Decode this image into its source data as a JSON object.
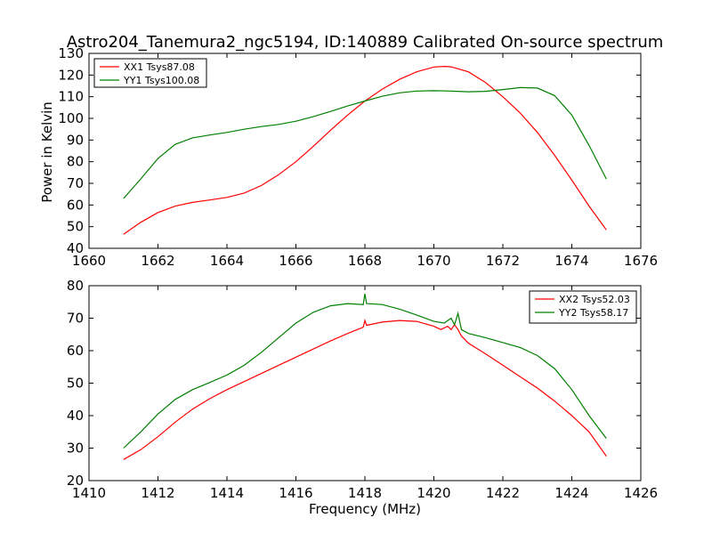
{
  "chart_data": [
    {
      "type": "line",
      "title": "Astro204_Tanemura2_ngc5194, ID:140889 Calibrated On-source spectrum",
      "xlabel": "",
      "ylabel": "Power in Kelvin",
      "xlim": [
        1660,
        1676
      ],
      "ylim": [
        40,
        130
      ],
      "xticks": [
        1660,
        1662,
        1664,
        1666,
        1668,
        1670,
        1672,
        1674,
        1676
      ],
      "yticks": [
        40,
        50,
        60,
        70,
        80,
        90,
        100,
        110,
        120,
        130
      ],
      "grid": false,
      "legend_position": "upper-left",
      "series": [
        {
          "name": "XX1 Tsys87.08",
          "color": "#ff0000",
          "x": [
            1661,
            1661.5,
            1662,
            1662.5,
            1663,
            1663.5,
            1664,
            1664.5,
            1665,
            1665.5,
            1666,
            1666.5,
            1667,
            1667.5,
            1668,
            1668.5,
            1669,
            1669.5,
            1670,
            1670.3,
            1670.5,
            1671,
            1671.5,
            1672,
            1672.5,
            1673,
            1673.5,
            1674,
            1674.5,
            1675
          ],
          "y": [
            46.5,
            52,
            56.5,
            59.5,
            61.2,
            62.3,
            63.5,
            65.5,
            69,
            74,
            80,
            87,
            94.5,
            101.5,
            108,
            113.5,
            118,
            121.5,
            123.7,
            124,
            123.8,
            121.5,
            116.5,
            110,
            102.5,
            93.5,
            83,
            71.5,
            59.5,
            48.5
          ]
        },
        {
          "name": "YY1 Tsys100.08",
          "color": "#008000",
          "x": [
            1661,
            1661.5,
            1662,
            1662.5,
            1663,
            1663.5,
            1664,
            1664.5,
            1665,
            1665.5,
            1666,
            1666.5,
            1667,
            1667.5,
            1668,
            1668.5,
            1669,
            1669.5,
            1670,
            1670.5,
            1671,
            1671.5,
            1672,
            1672.5,
            1673,
            1673.5,
            1674,
            1674.5,
            1675
          ],
          "y": [
            63,
            72,
            81.5,
            88,
            91,
            92.3,
            93.5,
            95,
            96.2,
            97.2,
            98.7,
            100.8,
            103.2,
            105.7,
            108,
            110.2,
            111.8,
            112.6,
            112.8,
            112.6,
            112.3,
            112.5,
            113.3,
            114.2,
            114,
            110.5,
            101.5,
            87.5,
            72
          ]
        }
      ]
    },
    {
      "type": "line",
      "title": "",
      "xlabel": "Frequency (MHz)",
      "ylabel": "",
      "xlim": [
        1410,
        1426
      ],
      "ylim": [
        20,
        80
      ],
      "xticks": [
        1410,
        1412,
        1414,
        1416,
        1418,
        1420,
        1422,
        1424,
        1426
      ],
      "yticks": [
        20,
        30,
        40,
        50,
        60,
        70,
        80
      ],
      "grid": false,
      "legend_position": "upper-right",
      "series": [
        {
          "name": "XX2 Tsys52.03",
          "color": "#ff0000",
          "x": [
            1411,
            1411.5,
            1412,
            1412.5,
            1413,
            1413.5,
            1414,
            1414.5,
            1415,
            1415.5,
            1416,
            1416.5,
            1417,
            1417.5,
            1417.95,
            1418,
            1418.05,
            1418.5,
            1419,
            1419.5,
            1420,
            1420.2,
            1420.4,
            1420.5,
            1420.6,
            1420.7,
            1420.8,
            1421,
            1421.5,
            1422,
            1422.5,
            1423,
            1423.5,
            1424,
            1424.5,
            1425
          ],
          "y": [
            26.5,
            29.5,
            33.5,
            38,
            42,
            45.2,
            48,
            50.5,
            53,
            55.5,
            58,
            60.5,
            63,
            65.3,
            67.2,
            69.3,
            67.8,
            68.8,
            69.3,
            69,
            67.5,
            66.5,
            67.5,
            66.5,
            68,
            66.5,
            64.5,
            62.3,
            59,
            55.5,
            52,
            48.5,
            44.5,
            40,
            35,
            27.5
          ]
        },
        {
          "name": "YY2 Tsys58.17",
          "color": "#008000",
          "x": [
            1411,
            1411.5,
            1412,
            1412.5,
            1413,
            1413.5,
            1414,
            1414.5,
            1415,
            1415.5,
            1416,
            1416.5,
            1417,
            1417.5,
            1417.95,
            1418,
            1418.05,
            1418.5,
            1419,
            1419.5,
            1420,
            1420.3,
            1420.5,
            1420.6,
            1420.7,
            1420.8,
            1421,
            1421.5,
            1422,
            1422.5,
            1423,
            1423.5,
            1424,
            1424.5,
            1425
          ],
          "y": [
            30,
            35,
            40.5,
            45,
            48,
            50.2,
            52.5,
            55.5,
            59.5,
            64,
            68.5,
            71.8,
            73.8,
            74.5,
            74.2,
            77.5,
            74.5,
            74.2,
            72.8,
            71,
            69,
            68.5,
            70,
            68,
            71.5,
            66.5,
            65.3,
            64,
            62.5,
            61,
            58.5,
            54.5,
            48,
            40,
            33
          ]
        }
      ]
    }
  ]
}
